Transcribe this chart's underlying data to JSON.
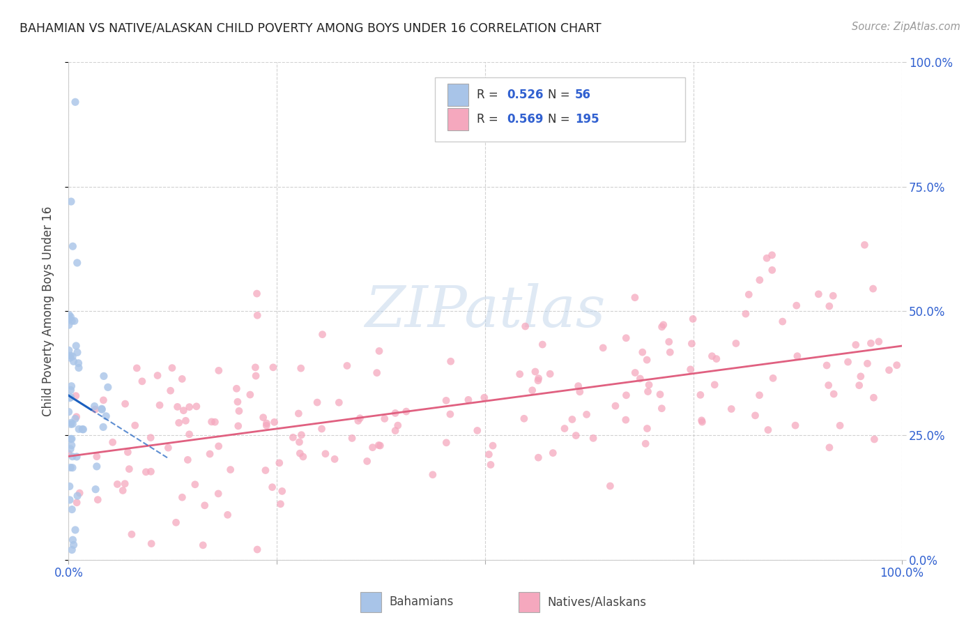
{
  "title": "BAHAMIAN VS NATIVE/ALASKAN CHILD POVERTY AMONG BOYS UNDER 16 CORRELATION CHART",
  "source": "Source: ZipAtlas.com",
  "ylabel": "Child Poverty Among Boys Under 16",
  "bahamian_R": 0.526,
  "bahamian_N": 56,
  "native_R": 0.569,
  "native_N": 195,
  "bahamian_color": "#a8c4e8",
  "native_color": "#f5a8be",
  "bahamian_line_color": "#1a5fbf",
  "native_line_color": "#e06080",
  "legend_label_1": "Bahamians",
  "legend_label_2": "Natives/Alaskans",
  "watermark_text": "ZIPatlas",
  "axis_label_color": "#3060d0",
  "xlim": [
    0,
    1
  ],
  "ylim": [
    0,
    1
  ],
  "bah_seed": 7,
  "nat_seed": 13
}
